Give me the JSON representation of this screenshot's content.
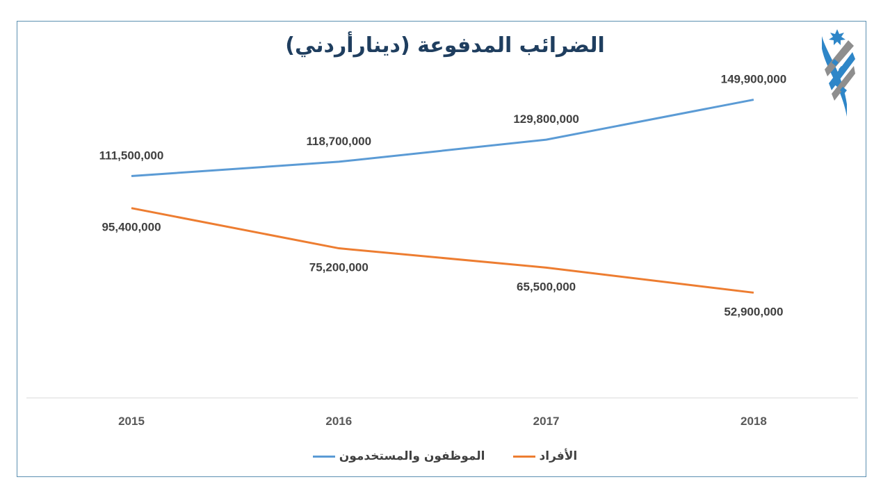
{
  "chart_data": {
    "type": "line",
    "title": "الضرائب المدفوعة (دينارأردني)",
    "categories": [
      "2015",
      "2016",
      "2017",
      "2018"
    ],
    "series": [
      {
        "name": "الموظفون والمستخدمون",
        "color": "#5b9bd5",
        "values": [
          111500000,
          118700000,
          129800000,
          149900000
        ],
        "labels": [
          "111,500,000",
          "118,700,000",
          "129,800,000",
          "149,900,000"
        ]
      },
      {
        "name": "الأفراد",
        "color": "#ed7d31",
        "values": [
          95400000,
          75200000,
          65500000,
          52900000
        ],
        "labels": [
          "95,400,000",
          "75,200,000",
          "65,500,000",
          "52,900,000"
        ]
      }
    ],
    "ylim": [
      0,
      160000000
    ],
    "grid": false,
    "y_axis_visible": false,
    "legend_position": "bottom",
    "title_color": "#1f3e5f",
    "logo": "blue-grey-striped-emblem-with-star"
  }
}
